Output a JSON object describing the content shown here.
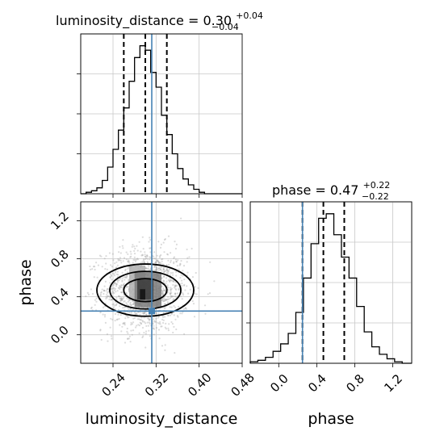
{
  "colors": {
    "truth": "#4682b4",
    "hist": "#000000",
    "grid": "#c8c8c8",
    "scatter": "#9a9a9a"
  },
  "chart_data": [
    {
      "type": "histogram",
      "panel": "luminosity_distance marginal",
      "title": {
        "base": "luminosity_distance = 0.30",
        "plus": "+0.04",
        "minus": "−0.04"
      },
      "xlim": [
        0.18,
        0.48
      ],
      "quantiles": [
        0.26,
        0.3,
        0.34
      ],
      "truth": 0.312,
      "bin_edges": [
        0.18,
        0.19,
        0.2,
        0.21,
        0.22,
        0.23,
        0.24,
        0.25,
        0.26,
        0.27,
        0.28,
        0.29,
        0.3,
        0.31,
        0.32,
        0.33,
        0.34,
        0.35,
        0.36,
        0.37,
        0.38,
        0.39,
        0.4,
        0.41,
        0.42,
        0.43,
        0.44,
        0.45,
        0.46,
        0.47,
        0.48
      ],
      "counts": [
        0,
        1,
        2,
        4,
        9,
        18,
        30,
        43,
        58,
        76,
        92,
        100,
        97,
        82,
        72,
        53,
        40,
        27,
        17,
        10,
        6,
        3,
        1,
        0,
        0,
        0,
        0,
        0,
        0,
        0
      ],
      "ymax": 108
    },
    {
      "type": "scatter",
      "panel": "phase vs luminosity_distance",
      "xlabel": "luminosity_distance",
      "ylabel": "phase",
      "xlim": [
        0.18,
        0.48
      ],
      "ylim": [
        -0.3,
        1.4
      ],
      "xticks": [
        "0.24",
        "0.32",
        "0.40",
        "0.48"
      ],
      "xtick_values": [
        0.24,
        0.32,
        0.4,
        0.48
      ],
      "yticks": [
        "0.0",
        "0.4",
        "0.8",
        "1.2"
      ],
      "ytick_values": [
        0.0,
        0.4,
        0.8,
        1.2
      ],
      "center": [
        0.3,
        0.47
      ],
      "spread": [
        0.04,
        0.22
      ],
      "truth": [
        0.312,
        0.25
      ]
    },
    {
      "type": "histogram",
      "panel": "phase marginal",
      "title": {
        "base": "phase = 0.47",
        "plus": "+0.22",
        "minus": "−0.22"
      },
      "xlabel": "phase",
      "xlim": [
        -0.3,
        1.4
      ],
      "xticks": [
        "0.0",
        "0.4",
        "0.8",
        "1.2"
      ],
      "xtick_values": [
        0.0,
        0.4,
        0.8,
        1.2
      ],
      "quantiles": [
        0.25,
        0.47,
        0.69
      ],
      "truth": 0.25,
      "bin_edges": [
        -0.3,
        -0.22,
        -0.14,
        -0.06,
        0.02,
        0.1,
        0.18,
        0.26,
        0.34,
        0.42,
        0.5,
        0.58,
        0.66,
        0.74,
        0.82,
        0.9,
        0.98,
        1.06,
        1.14,
        1.22,
        1.3,
        1.4
      ],
      "counts": [
        1,
        2,
        4,
        8,
        13,
        20,
        34,
        57,
        80,
        97,
        100,
        86,
        71,
        57,
        38,
        21,
        11,
        6,
        3,
        1,
        0
      ],
      "ymax": 108
    }
  ]
}
